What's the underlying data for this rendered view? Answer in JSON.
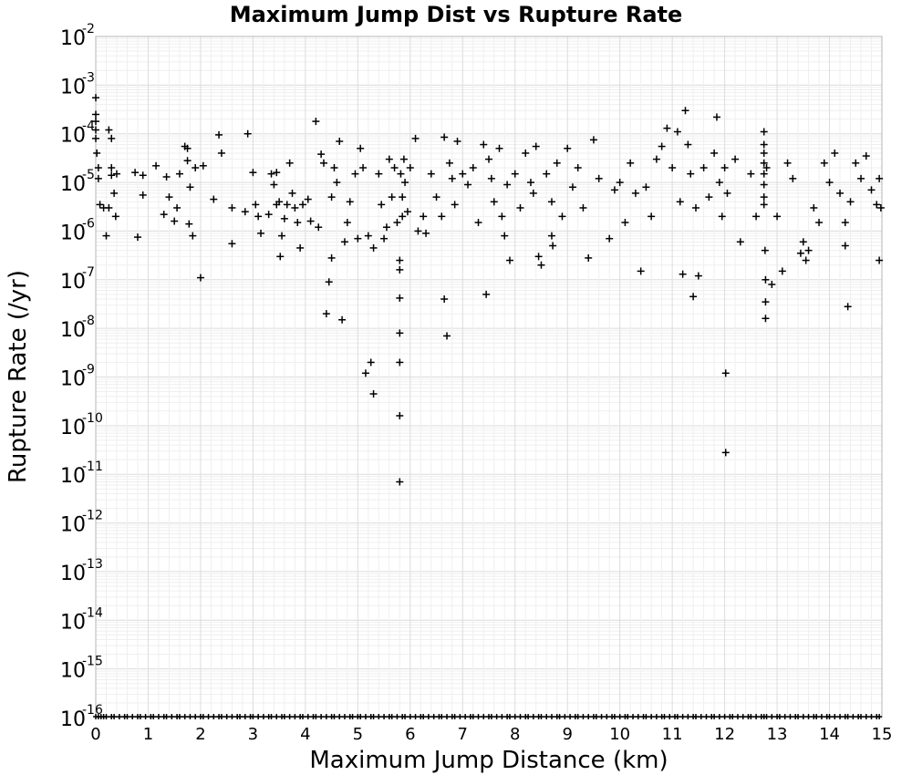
{
  "chart_data": {
    "type": "scatter",
    "title": "Maximum Jump Dist vs Rupture Rate",
    "xlabel": "Maximum Jump Distance (km)",
    "ylabel": "Rupture Rate (/yr)",
    "xlim": [
      0,
      15
    ],
    "ylim": [
      1e-16,
      0.01
    ],
    "y_scale": "log",
    "grid": true,
    "marker": "+",
    "x_ticks": [
      "0",
      "1",
      "2",
      "3",
      "4",
      "5",
      "6",
      "7",
      "8",
      "9",
      "10",
      "11",
      "12",
      "13",
      "14",
      "15"
    ],
    "y_ticks": [
      {
        "base": "10",
        "exp": "-2"
      },
      {
        "base": "10",
        "exp": "-3"
      },
      {
        "base": "10",
        "exp": "-4"
      },
      {
        "base": "10",
        "exp": "-5"
      },
      {
        "base": "10",
        "exp": "-6"
      },
      {
        "base": "10",
        "exp": "-7"
      },
      {
        "base": "10",
        "exp": "-8"
      },
      {
        "base": "10",
        "exp": "-9"
      },
      {
        "base": "10",
        "exp": "-10"
      },
      {
        "base": "10",
        "exp": "-11"
      },
      {
        "base": "10",
        "exp": "-12"
      },
      {
        "base": "10",
        "exp": "-13"
      },
      {
        "base": "10",
        "exp": "-14"
      },
      {
        "base": "10",
        "exp": "-15"
      },
      {
        "base": "10",
        "exp": "-16"
      }
    ],
    "series": [
      {
        "points": [
          [
            0.0,
            0.00055
          ],
          [
            0.0,
            0.00025
          ],
          [
            0.0,
            0.00018
          ],
          [
            0.0,
            0.00012
          ],
          [
            0.0,
            8e-05
          ],
          [
            0.02,
            4e-05
          ],
          [
            0.05,
            2e-05
          ],
          [
            0.05,
            1.2e-05
          ],
          [
            0.08,
            3.5e-06
          ],
          [
            0.15,
            3e-06
          ],
          [
            0.2,
            8e-07
          ],
          [
            0.25,
            0.00012
          ],
          [
            0.3,
            8e-05
          ],
          [
            0.3,
            2e-05
          ],
          [
            0.3,
            1.4e-05
          ],
          [
            0.35,
            6e-06
          ],
          [
            0.38,
            2e-06
          ],
          [
            0.4,
            1.5e-05
          ],
          [
            0.25,
            3e-06
          ],
          [
            0.75,
            1.6e-05
          ],
          [
            0.8,
            7.5e-07
          ],
          [
            0.9,
            1.4e-05
          ],
          [
            0.9,
            5.5e-06
          ],
          [
            1.15,
            2.2e-05
          ],
          [
            1.3,
            2.2e-06
          ],
          [
            1.4,
            5e-06
          ],
          [
            1.35,
            1.3e-05
          ],
          [
            1.5,
            1.6e-06
          ],
          [
            1.55,
            3e-06
          ],
          [
            1.6,
            1.5e-05
          ],
          [
            1.7,
            5.5e-05
          ],
          [
            1.75,
            2.8e-05
          ],
          [
            1.75,
            5e-05
          ],
          [
            1.78,
            1.4e-06
          ],
          [
            1.8,
            8e-06
          ],
          [
            1.85,
            8e-07
          ],
          [
            1.9,
            2e-05
          ],
          [
            2.0,
            1.1e-07
          ],
          [
            2.05,
            2.2e-05
          ],
          [
            2.25,
            4.5e-06
          ],
          [
            2.35,
            9.5e-05
          ],
          [
            2.4,
            4e-05
          ],
          [
            2.6,
            3e-06
          ],
          [
            2.6,
            5.5e-07
          ],
          [
            2.85,
            2.5e-06
          ],
          [
            2.9,
            0.0001
          ],
          [
            3.0,
            1.6e-05
          ],
          [
            3.05,
            3.5e-06
          ],
          [
            3.1,
            2e-06
          ],
          [
            3.15,
            9e-07
          ],
          [
            3.3,
            2.2e-06
          ],
          [
            3.35,
            1.5e-05
          ],
          [
            3.4,
            9e-06
          ],
          [
            3.45,
            3.5e-06
          ],
          [
            3.45,
            1.6e-05
          ],
          [
            3.5,
            4e-06
          ],
          [
            3.52,
            3e-07
          ],
          [
            3.55,
            8e-07
          ],
          [
            3.6,
            1.8e-06
          ],
          [
            3.65,
            3.5e-06
          ],
          [
            3.7,
            2.5e-05
          ],
          [
            3.75,
            6e-06
          ],
          [
            3.8,
            3e-06
          ],
          [
            3.85,
            1.5e-06
          ],
          [
            3.9,
            4.5e-07
          ],
          [
            3.95,
            3.5e-06
          ],
          [
            4.05,
            4.5e-06
          ],
          [
            4.1,
            1.6e-06
          ],
          [
            4.2,
            0.00018
          ],
          [
            4.25,
            1.2e-06
          ],
          [
            4.3,
            3.8e-05
          ],
          [
            4.35,
            2.5e-05
          ],
          [
            4.45,
            9e-08
          ],
          [
            4.4,
            2e-08
          ],
          [
            4.5,
            2.8e-07
          ],
          [
            4.5,
            5e-06
          ],
          [
            4.55,
            2e-05
          ],
          [
            4.6,
            1e-05
          ],
          [
            4.65,
            7e-05
          ],
          [
            4.7,
            1.5e-08
          ],
          [
            4.75,
            6e-07
          ],
          [
            4.8,
            1.5e-06
          ],
          [
            4.85,
            4e-06
          ],
          [
            4.95,
            1.5e-05
          ],
          [
            5.0,
            7e-07
          ],
          [
            5.05,
            5e-05
          ],
          [
            5.1,
            2e-05
          ],
          [
            5.15,
            1.2e-09
          ],
          [
            5.2,
            8e-07
          ],
          [
            5.25,
            2e-09
          ],
          [
            5.3,
            4.5e-07
          ],
          [
            5.3,
            4.5e-10
          ],
          [
            5.4,
            1.5e-05
          ],
          [
            5.45,
            3.5e-06
          ],
          [
            5.5,
            7e-07
          ],
          [
            5.55,
            1.2e-06
          ],
          [
            5.6,
            3e-05
          ],
          [
            5.65,
            5e-06
          ],
          [
            5.7,
            2e-05
          ],
          [
            5.75,
            1.5e-06
          ],
          [
            5.8,
            2.5e-07
          ],
          [
            5.8,
            1.6e-07
          ],
          [
            5.8,
            4.2e-08
          ],
          [
            5.8,
            8e-09
          ],
          [
            5.8,
            2e-09
          ],
          [
            5.8,
            1.6e-10
          ],
          [
            5.8,
            7e-12
          ],
          [
            5.82,
            1.5e-05
          ],
          [
            5.85,
            5e-06
          ],
          [
            5.85,
            2e-06
          ],
          [
            5.88,
            3e-05
          ],
          [
            5.9,
            1e-05
          ],
          [
            5.95,
            2.5e-06
          ],
          [
            6.0,
            2e-05
          ],
          [
            6.1,
            8e-05
          ],
          [
            6.15,
            1e-06
          ],
          [
            6.25,
            2e-06
          ],
          [
            6.3,
            9e-07
          ],
          [
            6.4,
            1.5e-05
          ],
          [
            6.5,
            5e-06
          ],
          [
            6.6,
            2e-06
          ],
          [
            6.65,
            8.5e-05
          ],
          [
            6.65,
            4e-08
          ],
          [
            6.7,
            7e-09
          ],
          [
            6.75,
            2.5e-05
          ],
          [
            6.8,
            1.2e-05
          ],
          [
            6.85,
            3.5e-06
          ],
          [
            6.9,
            7e-05
          ],
          [
            7.0,
            1.5e-05
          ],
          [
            7.1,
            9e-06
          ],
          [
            7.2,
            2e-05
          ],
          [
            7.3,
            1.5e-06
          ],
          [
            7.4,
            6e-05
          ],
          [
            7.45,
            5e-08
          ],
          [
            7.5,
            3e-05
          ],
          [
            7.55,
            1.2e-05
          ],
          [
            7.6,
            4e-06
          ],
          [
            7.7,
            5e-05
          ],
          [
            7.75,
            2e-06
          ],
          [
            7.8,
            8e-07
          ],
          [
            7.85,
            9e-06
          ],
          [
            7.9,
            2.5e-07
          ],
          [
            8.0,
            1.5e-05
          ],
          [
            8.1,
            3e-06
          ],
          [
            8.2,
            4e-05
          ],
          [
            8.3,
            1e-05
          ],
          [
            8.35,
            6e-06
          ],
          [
            8.4,
            5.5e-05
          ],
          [
            8.45,
            3e-07
          ],
          [
            8.5,
            2e-07
          ],
          [
            8.6,
            1.5e-05
          ],
          [
            8.7,
            4e-06
          ],
          [
            8.7,
            8e-07
          ],
          [
            8.72,
            5e-07
          ],
          [
            8.8,
            2.5e-05
          ],
          [
            8.9,
            2e-06
          ],
          [
            9.0,
            5e-05
          ],
          [
            9.1,
            8e-06
          ],
          [
            9.2,
            2e-05
          ],
          [
            9.3,
            3e-06
          ],
          [
            9.4,
            2.8e-07
          ],
          [
            9.5,
            7.5e-05
          ],
          [
            9.6,
            1.2e-05
          ],
          [
            9.8,
            7e-07
          ],
          [
            9.9,
            7e-06
          ],
          [
            10.0,
            1e-05
          ],
          [
            10.1,
            1.5e-06
          ],
          [
            10.2,
            2.5e-05
          ],
          [
            10.3,
            6e-06
          ],
          [
            10.4,
            1.5e-07
          ],
          [
            10.5,
            8e-06
          ],
          [
            10.6,
            2e-06
          ],
          [
            10.7,
            3e-05
          ],
          [
            10.8,
            5.5e-05
          ],
          [
            10.9,
            0.00013
          ],
          [
            11.0,
            2e-05
          ],
          [
            11.1,
            0.00011
          ],
          [
            11.15,
            4e-06
          ],
          [
            11.2,
            1.3e-07
          ],
          [
            11.25,
            0.0003
          ],
          [
            11.3,
            6e-05
          ],
          [
            11.35,
            1.5e-05
          ],
          [
            11.4,
            4.5e-08
          ],
          [
            11.45,
            3e-06
          ],
          [
            11.5,
            1.2e-07
          ],
          [
            11.6,
            2e-05
          ],
          [
            11.7,
            5e-06
          ],
          [
            11.8,
            4e-05
          ],
          [
            11.85,
            0.00022
          ],
          [
            11.9,
            1e-05
          ],
          [
            11.95,
            2e-06
          ],
          [
            12.0,
            2e-05
          ],
          [
            12.02,
            1.2e-09
          ],
          [
            12.02,
            2.8e-11
          ],
          [
            12.05,
            6e-06
          ],
          [
            12.2,
            3e-05
          ],
          [
            12.3,
            6e-07
          ],
          [
            12.5,
            1.5e-05
          ],
          [
            12.6,
            2e-06
          ],
          [
            12.75,
            0.00011
          ],
          [
            12.75,
            6e-05
          ],
          [
            12.75,
            4e-05
          ],
          [
            12.75,
            2.5e-05
          ],
          [
            12.75,
            1.5e-05
          ],
          [
            12.75,
            9e-06
          ],
          [
            12.75,
            5e-06
          ],
          [
            12.75,
            3.5e-06
          ],
          [
            12.77,
            4e-07
          ],
          [
            12.78,
            1e-07
          ],
          [
            12.78,
            3.5e-08
          ],
          [
            12.78,
            1.6e-08
          ],
          [
            12.8,
            2e-05
          ],
          [
            12.9,
            8e-08
          ],
          [
            13.0,
            2e-06
          ],
          [
            13.1,
            1.5e-07
          ],
          [
            13.2,
            2.5e-05
          ],
          [
            13.3,
            1.2e-05
          ],
          [
            13.45,
            3.5e-07
          ],
          [
            13.5,
            6e-07
          ],
          [
            13.55,
            2.5e-07
          ],
          [
            13.6,
            4e-07
          ],
          [
            13.7,
            3e-06
          ],
          [
            13.8,
            1.5e-06
          ],
          [
            13.9,
            2.5e-05
          ],
          [
            14.0,
            1e-05
          ],
          [
            14.1,
            4e-05
          ],
          [
            14.2,
            6e-06
          ],
          [
            14.3,
            1.5e-06
          ],
          [
            14.3,
            5e-07
          ],
          [
            14.35,
            2.8e-08
          ],
          [
            14.4,
            4e-06
          ],
          [
            14.5,
            2.5e-05
          ],
          [
            14.6,
            1.2e-05
          ],
          [
            14.7,
            3.5e-05
          ],
          [
            14.8,
            7e-06
          ],
          [
            14.9,
            3.5e-06
          ],
          [
            14.95,
            1.2e-05
          ],
          [
            14.95,
            2.5e-07
          ],
          [
            14.98,
            3e-06
          ]
        ]
      }
    ],
    "floor_ticks": [
      0.0,
      0.05,
      0.1,
      0.15,
      0.2,
      0.3,
      0.35,
      0.45,
      0.55,
      0.6,
      0.7,
      0.8,
      0.85,
      0.95,
      1.05,
      1.1,
      1.2,
      1.3,
      1.35,
      1.45,
      1.55,
      1.6,
      1.7,
      1.8,
      1.9,
      2.0,
      2.05,
      2.15,
      2.25,
      2.35,
      2.4,
      2.5,
      2.6,
      2.7,
      2.75,
      2.85,
      2.95,
      3.0,
      3.1,
      3.2,
      3.3,
      3.35,
      3.45,
      3.55,
      3.6,
      3.7,
      3.8,
      3.9,
      3.95,
      4.05,
      4.15,
      4.2,
      4.3,
      4.4,
      4.5,
      4.55,
      4.65,
      4.75,
      4.85,
      4.9,
      5.0,
      5.05,
      5.15,
      5.25,
      5.3,
      5.4,
      5.5,
      5.6,
      5.65,
      5.75,
      5.85,
      5.9,
      6.0,
      6.1,
      6.2,
      6.25,
      6.35,
      6.45,
      6.55,
      6.6,
      6.7,
      6.8,
      6.85,
      6.95,
      7.05,
      7.15,
      7.2,
      7.3,
      7.4,
      7.5,
      7.55,
      7.65,
      7.75,
      7.85,
      7.9,
      8.0,
      8.1,
      8.2,
      8.25,
      8.35,
      8.45,
      8.5,
      8.6,
      8.7,
      8.8,
      8.85,
      8.95,
      9.05,
      9.15,
      9.2,
      9.3,
      9.4,
      9.5,
      9.55,
      9.65,
      9.75,
      9.85,
      9.9,
      10.0,
      10.1,
      10.15,
      10.25,
      10.35,
      10.45,
      10.5,
      10.6,
      10.7,
      10.8,
      10.85,
      10.95,
      11.05,
      11.1,
      11.2,
      11.3,
      11.4,
      11.45,
      11.55,
      11.65,
      11.75,
      11.8,
      11.9,
      12.0,
      12.1,
      12.15,
      12.25,
      12.35,
      12.45,
      12.5,
      12.6,
      12.7,
      12.75,
      12.8,
      12.9,
      13.0,
      13.05,
      13.15,
      13.25,
      13.35,
      13.4,
      13.5,
      13.6,
      13.7,
      13.75,
      13.85,
      13.95,
      14.0,
      14.1,
      14.2,
      14.3,
      14.35,
      14.45,
      14.55,
      14.6,
      14.7,
      14.8,
      14.9,
      14.95
    ]
  }
}
